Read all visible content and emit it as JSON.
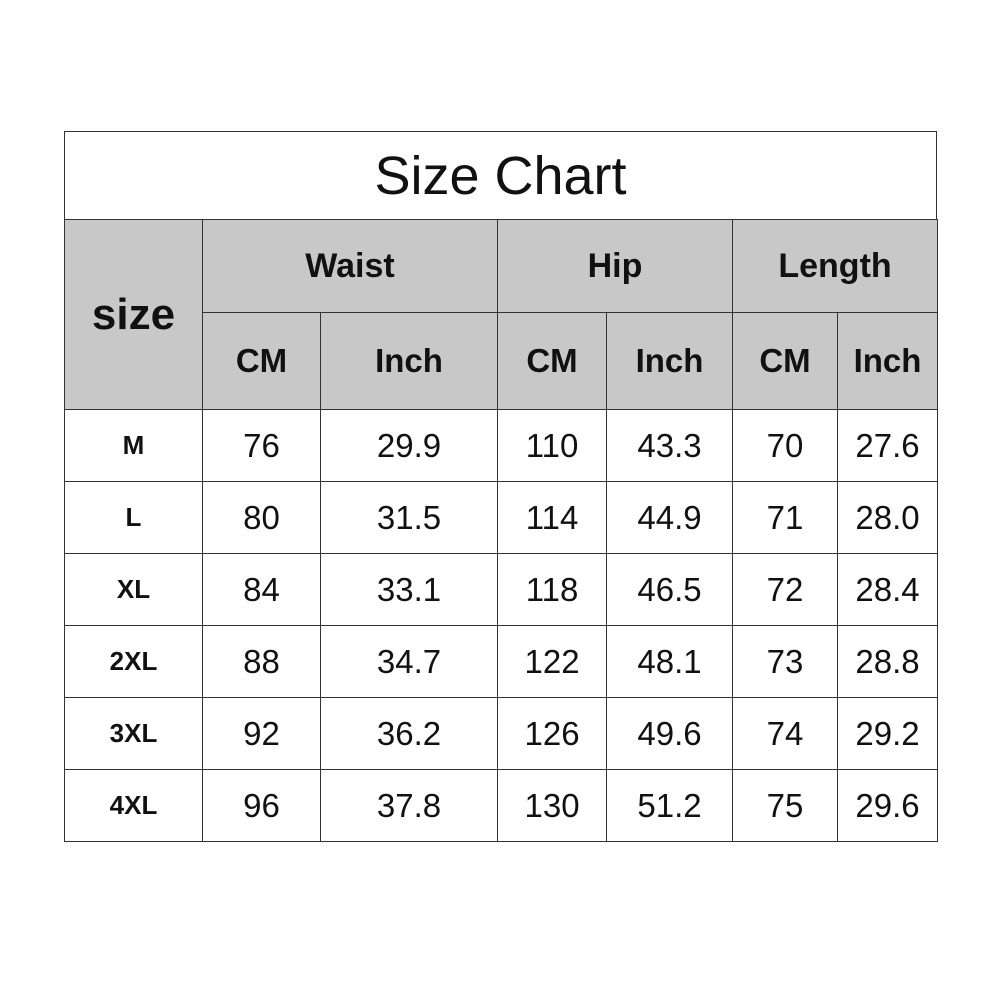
{
  "title": "Size Chart",
  "header": {
    "size": "size",
    "groups": [
      "Waist",
      "Hip",
      "Length"
    ],
    "units": [
      "CM",
      "Inch",
      "CM",
      "Inch",
      "CM",
      "Inch"
    ]
  },
  "rows": [
    {
      "size": "M",
      "values": [
        "76",
        "29.9",
        "110",
        "43.3",
        "70",
        "27.6"
      ]
    },
    {
      "size": "L",
      "values": [
        "80",
        "31.5",
        "114",
        "44.9",
        "71",
        "28.0"
      ]
    },
    {
      "size": "XL",
      "values": [
        "84",
        "33.1",
        "118",
        "46.5",
        "72",
        "28.4"
      ]
    },
    {
      "size": "2XL",
      "values": [
        "88",
        "34.7",
        "122",
        "48.1",
        "73",
        "28.8"
      ]
    },
    {
      "size": "3XL",
      "values": [
        "92",
        "36.2",
        "126",
        "49.6",
        "74",
        "29.2"
      ]
    },
    {
      "size": "4XL",
      "values": [
        "96",
        "37.8",
        "130",
        "51.2",
        "75",
        "29.6"
      ]
    }
  ],
  "colors": {
    "header_bg": "#c8c8c8",
    "border": "#333333"
  }
}
